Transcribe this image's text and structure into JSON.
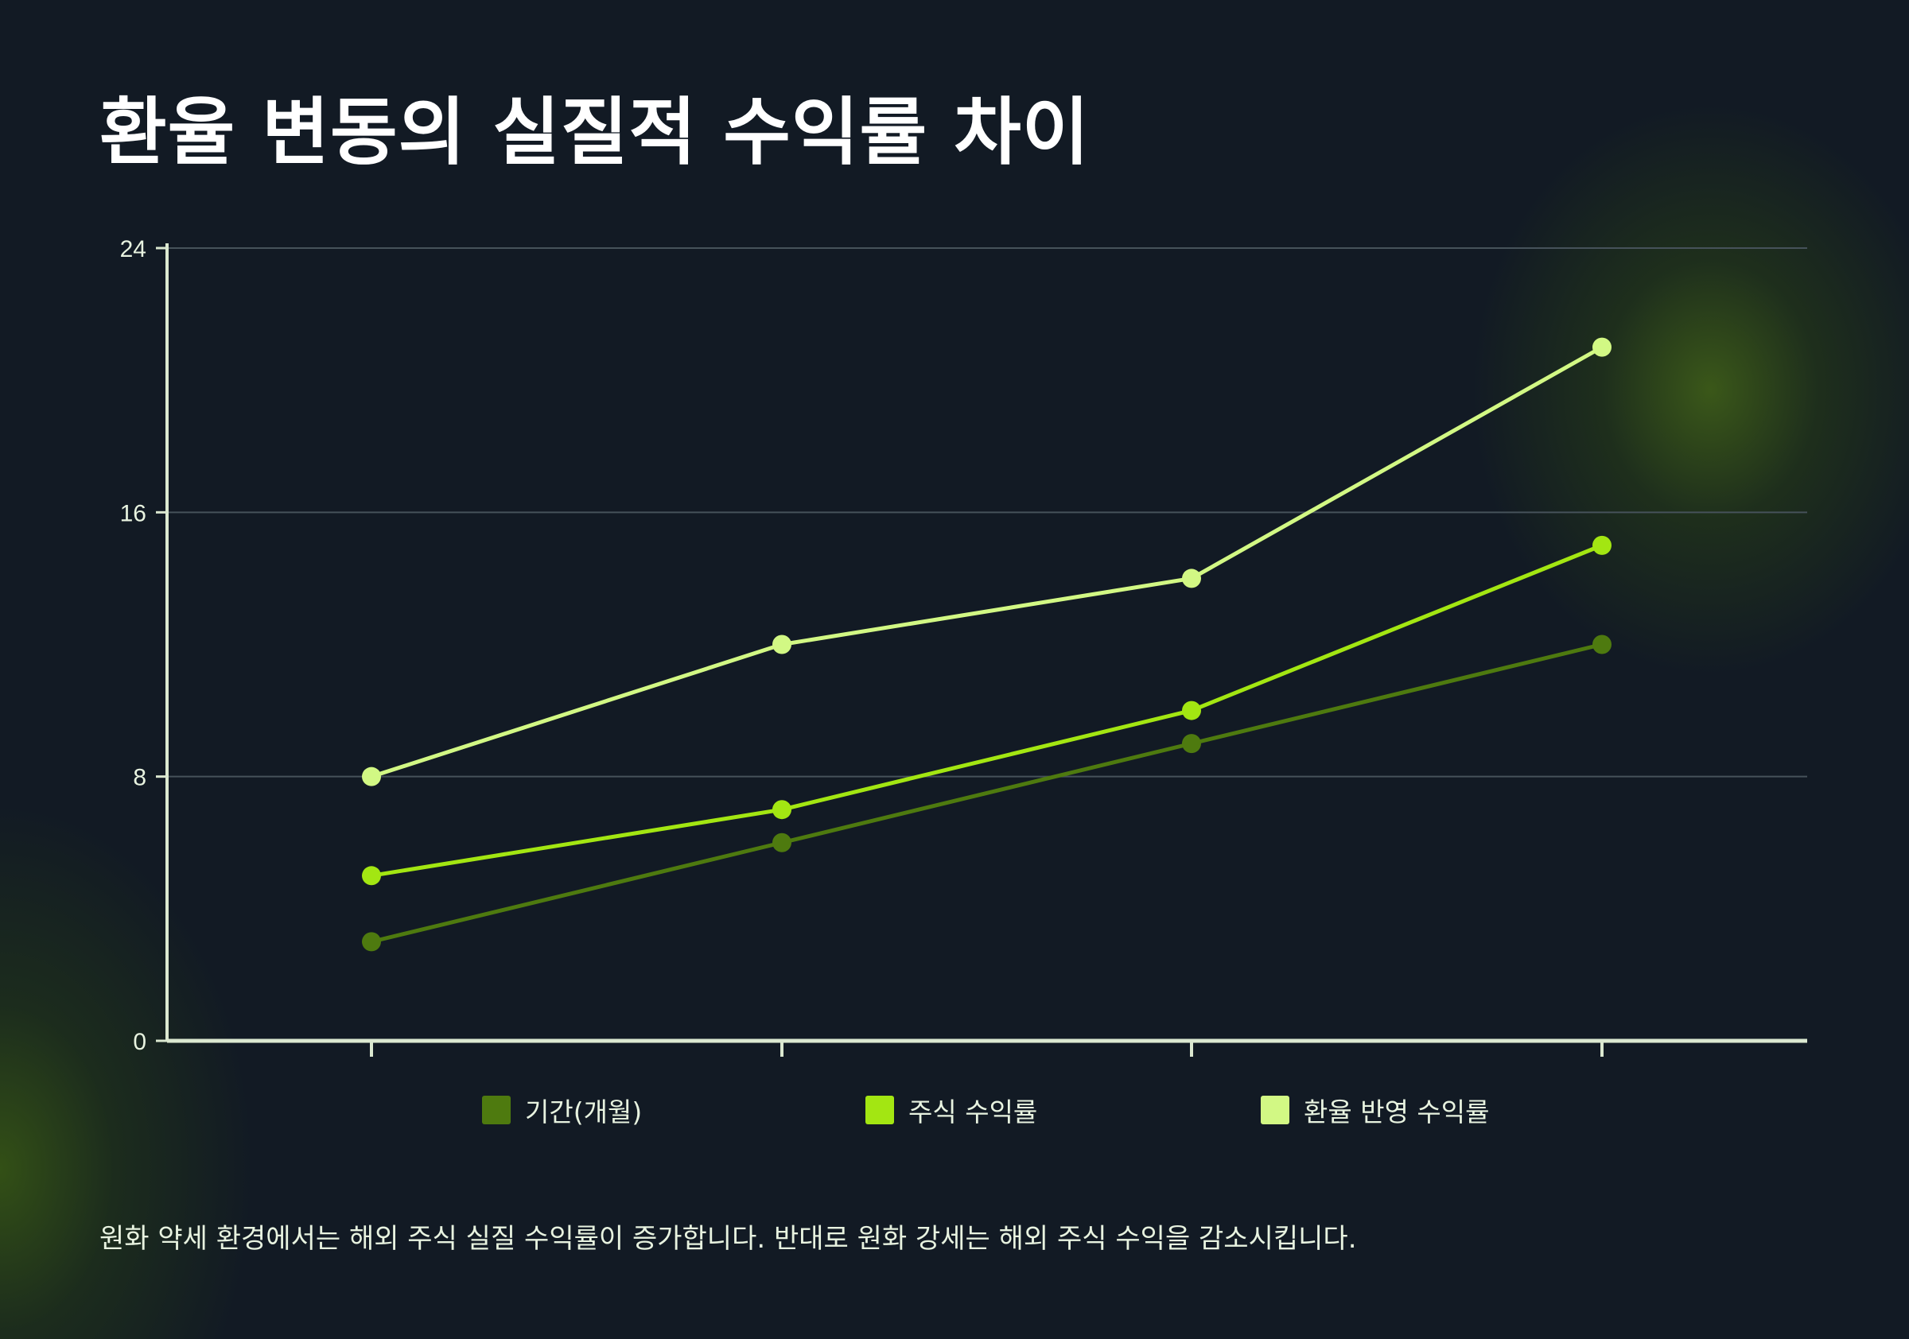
{
  "title": "환율 변동의 실질적 수익률 차이",
  "footnote": "원화 약세 환경에서는 해외 주식 실질 수익률이 증가합니다. 반대로 원화 강세는 해외 주식 수익을 감소시킵니다.",
  "colors": {
    "background": "#121a24",
    "axis": "#dbe8d0",
    "grid": "#46525a",
    "text": "#e8f3e0"
  },
  "chart_data": {
    "type": "line",
    "categories": [
      "",
      "",
      "",
      ""
    ],
    "ylim": [
      0,
      24
    ],
    "yticks": [
      "0",
      "8",
      "16",
      "24"
    ],
    "grid": true,
    "legend_position": "bottom",
    "series": [
      {
        "name": "기간(개월)",
        "color": "#4e7a0f",
        "values": [
          3,
          6,
          9,
          12
        ]
      },
      {
        "name": "주식 수익률",
        "color": "#a3e612",
        "values": [
          5,
          7,
          10,
          15
        ]
      },
      {
        "name": "환율 반영 수익률",
        "color": "#d2f884",
        "values": [
          8,
          12,
          14,
          21
        ]
      }
    ]
  }
}
